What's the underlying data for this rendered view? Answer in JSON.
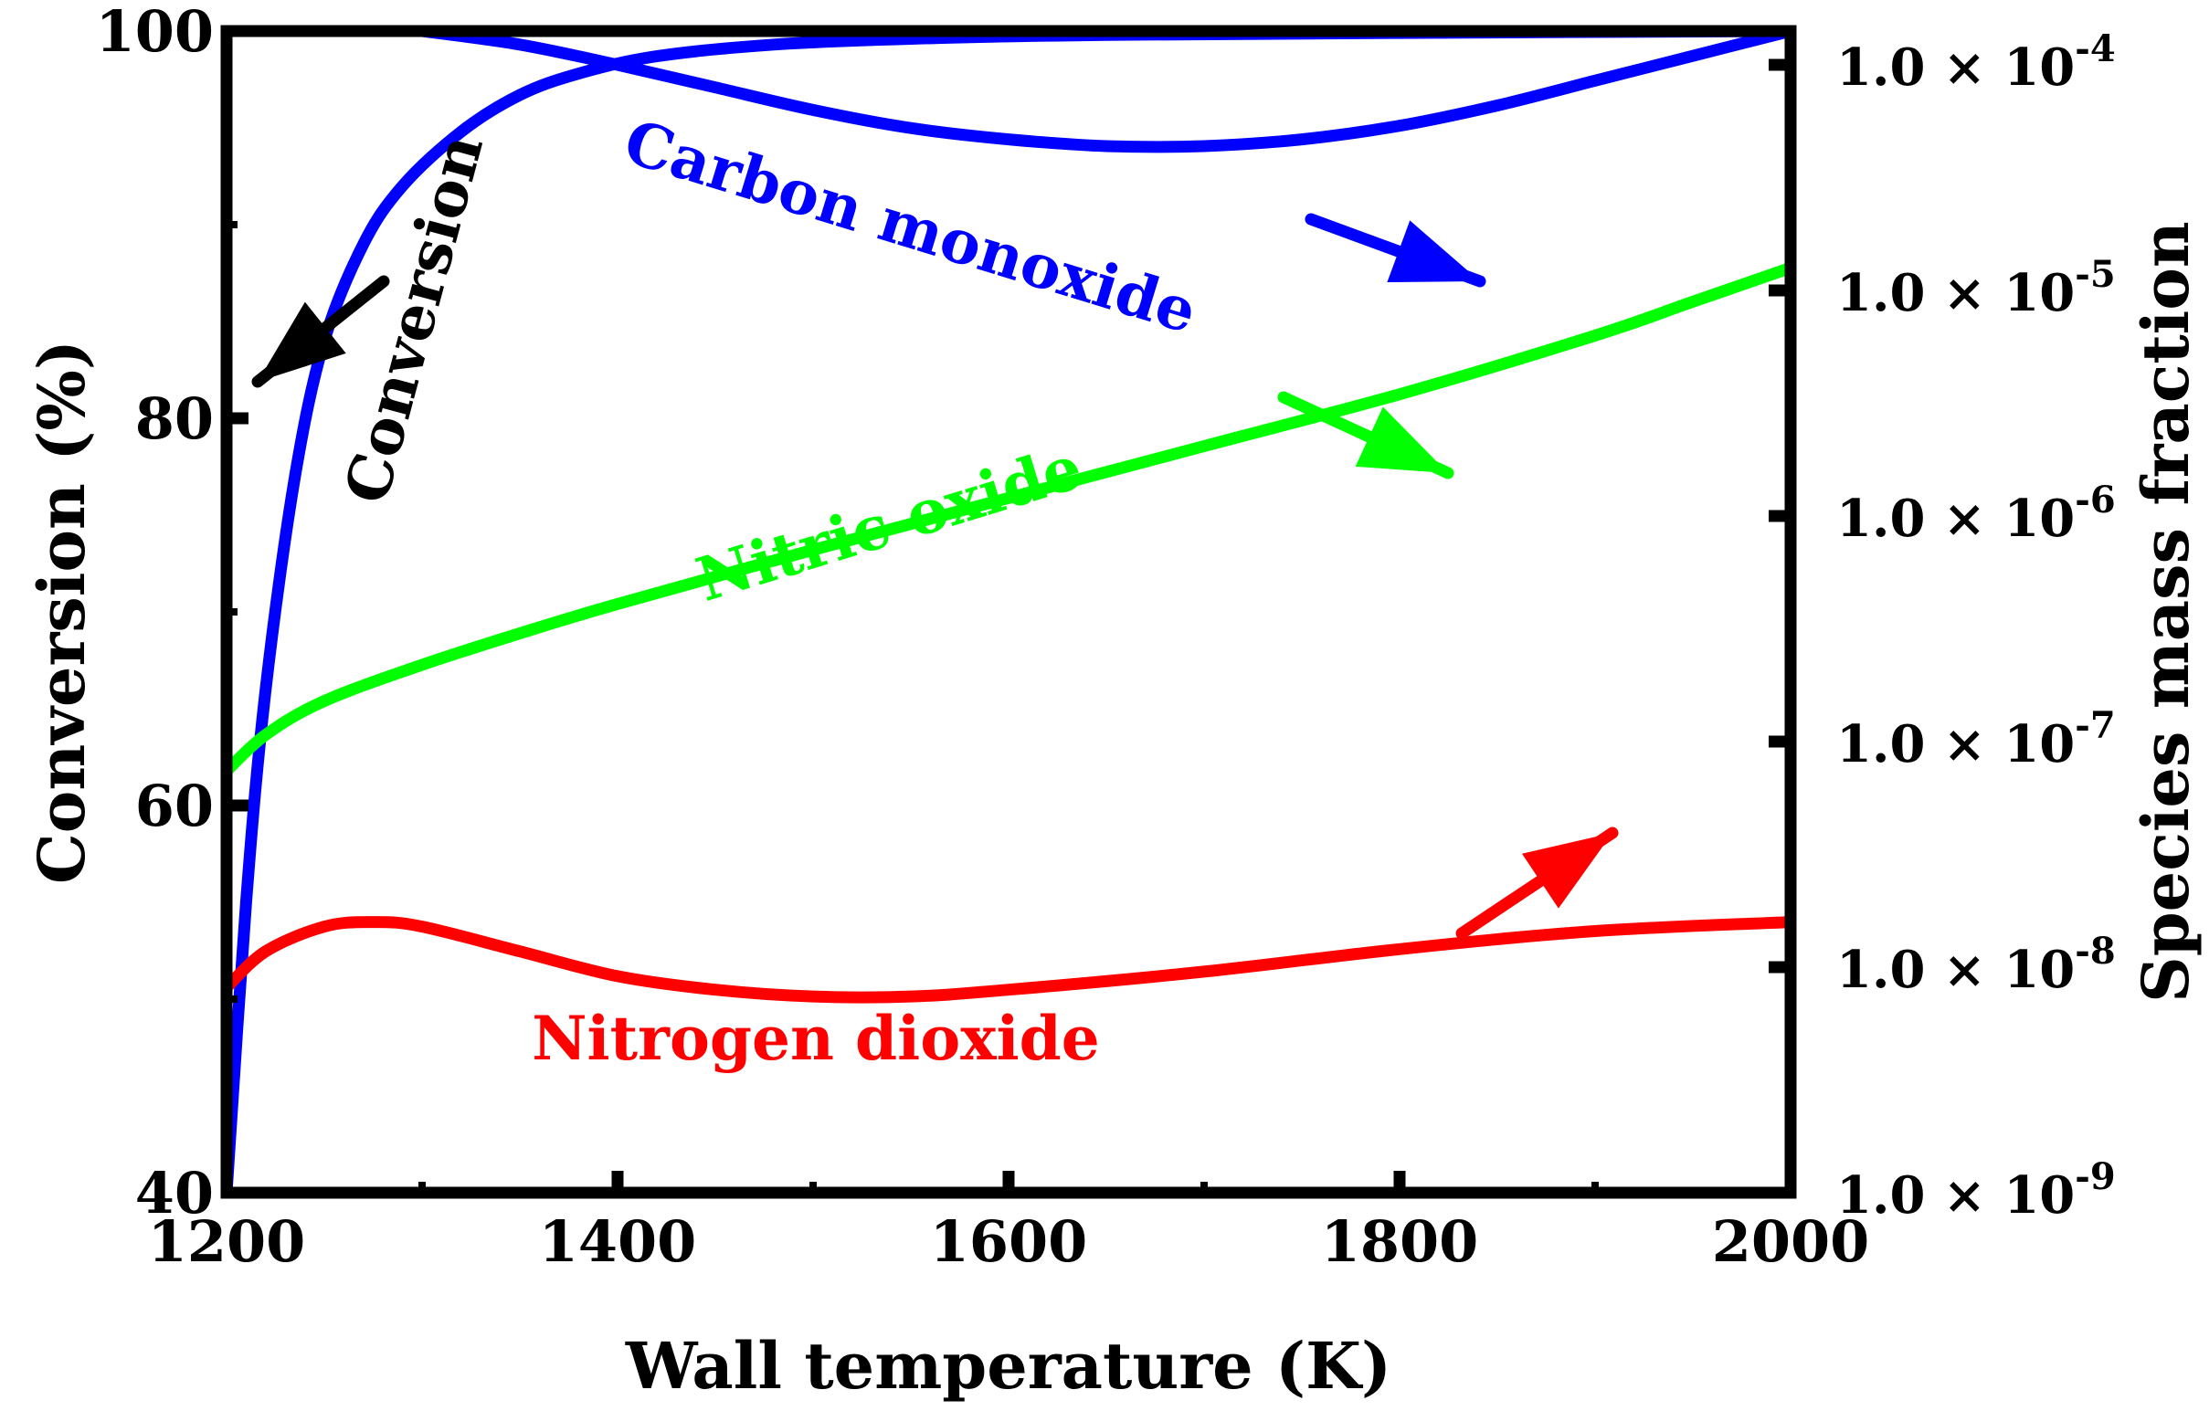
{
  "chart_data": {
    "type": "line",
    "xlabel": "Wall temperature (K)",
    "ylabel_left": "Conversion (%)",
    "ylabel_right": "Species mass fraction",
    "xlim": [
      1200,
      2000
    ],
    "ylim_left": [
      40,
      100
    ],
    "ylim_right_log10": [
      -9,
      -3.85
    ],
    "x_ticks": [
      1200,
      1400,
      1600,
      1800,
      2000
    ],
    "x_tick_labels": [
      "1200",
      "1400",
      "1600",
      "1800",
      "2000"
    ],
    "y_left_ticks": [
      40,
      60,
      80,
      100
    ],
    "y_left_tick_labels": [
      "40",
      "60",
      "80",
      "100"
    ],
    "y_right_ticks": [
      {
        "exp": -9,
        "base": "1.0 × 10",
        "sup": "-9"
      },
      {
        "exp": -8,
        "base": "1.0 × 10",
        "sup": "-8"
      },
      {
        "exp": -7,
        "base": "1.0 × 10",
        "sup": "-7"
      },
      {
        "exp": -6,
        "base": "1.0 × 10",
        "sup": "-6"
      },
      {
        "exp": -5,
        "base": "1.0 × 10",
        "sup": "-5"
      },
      {
        "exp": -4,
        "base": "1.0 × 10",
        "sup": "-4"
      }
    ],
    "series": [
      {
        "name": "Conversion",
        "label": "Conversion",
        "axis": "left",
        "color": "#0000ff",
        "x": [
          1200,
          1210,
          1220,
          1235,
          1250,
          1270,
          1290,
          1320,
          1350,
          1380,
          1420,
          1480,
          1550,
          1650,
          1800,
          2000
        ],
        "values": [
          40,
          55,
          66,
          77,
          84,
          89,
          92,
          94.8,
          96.7,
          97.8,
          98.7,
          99.3,
          99.6,
          99.8,
          99.9,
          100
        ]
      },
      {
        "name": "Carbon monoxide",
        "label": "Carbon monoxide",
        "axis": "right",
        "color": "#0000ff",
        "x": [
          1300,
          1350,
          1400,
          1450,
          1500,
          1550,
          1600,
          1650,
          1700,
          1750,
          1800,
          1850,
          1900,
          1950,
          2000
        ],
        "values": [
          -3.85,
          -3.91,
          -4.0,
          -4.1,
          -4.2,
          -4.28,
          -4.33,
          -4.36,
          -4.36,
          -4.33,
          -4.27,
          -4.18,
          -4.07,
          -3.96,
          -3.85
        ]
      },
      {
        "name": "Nitric oxide",
        "label": "Nitric oxide",
        "axis": "right",
        "color": "#00ff00",
        "x": [
          1200,
          1220,
          1250,
          1300,
          1350,
          1400,
          1500,
          1600,
          1700,
          1800,
          1900,
          1950,
          2000
        ],
        "values": [
          -7.13,
          -6.97,
          -6.82,
          -6.66,
          -6.52,
          -6.39,
          -6.15,
          -5.92,
          -5.69,
          -5.46,
          -5.2,
          -5.05,
          -4.9
        ]
      },
      {
        "name": "Nitrogen dioxide",
        "label": "Nitrogen dioxide",
        "axis": "right",
        "color": "#ff0000",
        "x": [
          1200,
          1220,
          1250,
          1275,
          1300,
          1350,
          1400,
          1450,
          1500,
          1550,
          1600,
          1700,
          1800,
          1900,
          2000
        ],
        "values": [
          -8.09,
          -7.93,
          -7.82,
          -7.8,
          -7.82,
          -7.93,
          -8.04,
          -8.1,
          -8.13,
          -8.13,
          -8.1,
          -8.02,
          -7.92,
          -7.84,
          -7.8
        ]
      }
    ],
    "annotations": [
      {
        "name": "Conversion",
        "text": "Conversion",
        "color": "#000000",
        "points_to": "left axis"
      },
      {
        "name": "Carbon monoxide",
        "text": "Carbon monoxide",
        "color": "#0000ff",
        "points_to": "right axis"
      },
      {
        "name": "Nitric oxide",
        "text": "Nitric oxide",
        "color": "#00ff00",
        "points_to": "right axis"
      },
      {
        "name": "Nitrogen dioxide",
        "text": "Nitrogen dioxide",
        "color": "#ff0000",
        "points_to": "right axis"
      }
    ],
    "grid": false,
    "legend": "none"
  }
}
